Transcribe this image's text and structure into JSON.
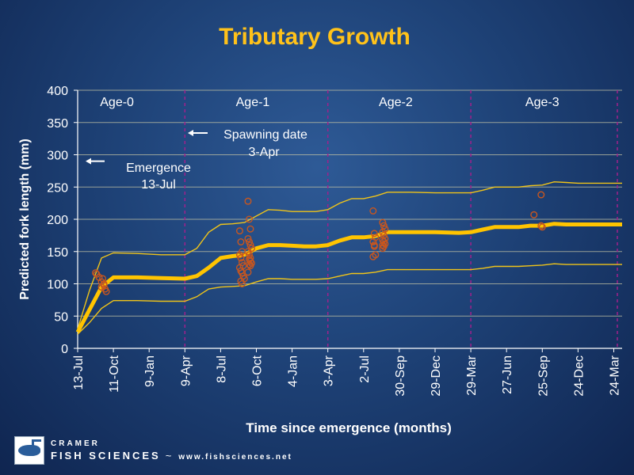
{
  "chart_data": {
    "type": "line",
    "title": "Tributary Growth",
    "xlabel": "Time since emergence (months)",
    "ylabel": "Predicted fork length (mm)",
    "ylim": [
      0,
      400
    ],
    "yticks": [
      0,
      50,
      100,
      150,
      200,
      250,
      300,
      350,
      400
    ],
    "xlim": [
      0,
      45.7
    ],
    "xticks": [
      {
        "label": "13-Jul",
        "month": 0
      },
      {
        "label": "11-Oct",
        "month": 3
      },
      {
        "label": "9-Jan",
        "month": 6
      },
      {
        "label": "9-Apr",
        "month": 9
      },
      {
        "label": "8-Jul",
        "month": 12
      },
      {
        "label": "6-Oct",
        "month": 15
      },
      {
        "label": "4-Jan",
        "month": 18
      },
      {
        "label": "3-Apr",
        "month": 21
      },
      {
        "label": "2-Jul",
        "month": 24
      },
      {
        "label": "30-Sep",
        "month": 27
      },
      {
        "label": "29-Dec",
        "month": 30
      },
      {
        "label": "29-Mar",
        "month": 33
      },
      {
        "label": "27-Jun",
        "month": 36
      },
      {
        "label": "25-Sep",
        "month": 39
      },
      {
        "label": "24-Dec",
        "month": 42
      },
      {
        "label": "24-Mar",
        "month": 45
      }
    ],
    "grid": true,
    "age_dividers": [
      9,
      21,
      33,
      45.3
    ],
    "age_labels": [
      {
        "label": "Age-0",
        "month": 3.3
      },
      {
        "label": "Age-1",
        "month": 14.7
      },
      {
        "label": "Age-2",
        "month": 26.7
      },
      {
        "label": "Age-3",
        "month": 39
      }
    ],
    "annotations": [
      {
        "line1": "Emergence",
        "line2": "13-Jul",
        "arrow_y": 290
      },
      {
        "line1": "Spawning date",
        "line2": "3-Apr",
        "arrow_y": 330
      }
    ],
    "series": [
      {
        "role": "mean",
        "x": [
          0,
          1,
          2,
          3,
          5,
          7,
          9,
          10,
          11,
          12,
          13,
          14,
          15,
          16,
          17,
          18,
          19,
          20,
          21,
          22,
          23,
          24,
          25,
          26,
          27,
          28,
          30,
          32,
          33,
          34,
          35,
          36,
          37,
          38,
          39,
          40,
          41,
          42,
          43,
          44,
          45,
          45.7
        ],
        "y": [
          25,
          60,
          95,
          110,
          110,
          109,
          108,
          112,
          125,
          140,
          143,
          145,
          155,
          160,
          160,
          159,
          158,
          158,
          160,
          167,
          172,
          172,
          174,
          180,
          180,
          180,
          180,
          179,
          180,
          184,
          188,
          188,
          188,
          190,
          190,
          193,
          192,
          192,
          192,
          192,
          192,
          192
        ]
      },
      {
        "role": "upper",
        "x": [
          0,
          1,
          2,
          3,
          5,
          7,
          9,
          10,
          11,
          12,
          13,
          14,
          15,
          16,
          17,
          18,
          19,
          20,
          21,
          22,
          23,
          24,
          25,
          26,
          27,
          28,
          30,
          32,
          33,
          34,
          35,
          36,
          37,
          38,
          39,
          40,
          41,
          42,
          43,
          44,
          45,
          45.7
        ],
        "y": [
          30,
          90,
          140,
          148,
          147,
          145,
          145,
          155,
          180,
          192,
          193,
          195,
          205,
          215,
          214,
          212,
          212,
          212,
          215,
          225,
          232,
          232,
          236,
          242,
          242,
          242,
          241,
          241,
          241,
          245,
          250,
          250,
          250,
          252,
          253,
          258,
          257,
          256,
          256,
          256,
          256,
          256
        ]
      },
      {
        "role": "lower",
        "x": [
          0,
          1,
          2,
          3,
          5,
          7,
          9,
          10,
          11,
          12,
          13,
          14,
          15,
          16,
          17,
          18,
          19,
          20,
          21,
          22,
          23,
          24,
          25,
          26,
          27,
          28,
          30,
          32,
          33,
          34,
          35,
          36,
          37,
          38,
          39,
          40,
          41,
          42,
          43,
          44,
          45,
          45.7
        ],
        "y": [
          22,
          40,
          62,
          74,
          74,
          73,
          73,
          80,
          92,
          95,
          96,
          97,
          103,
          108,
          108,
          107,
          107,
          107,
          108,
          112,
          116,
          116,
          118,
          122,
          122,
          122,
          122,
          122,
          122,
          124,
          127,
          127,
          127,
          128,
          129,
          131,
          130,
          130,
          130,
          130,
          130,
          130
        ]
      },
      {
        "role": "observed",
        "x": [
          1.5,
          1.6,
          1.8,
          2.0,
          2.1,
          2.2,
          2.3,
          2.4,
          2.0,
          2.2,
          13.6,
          13.7,
          13.8,
          13.6,
          13.7,
          13.8,
          13.9,
          13.6,
          13.7,
          13.8,
          13.9,
          14.0,
          13.7,
          13.8,
          14.3,
          14.4,
          14.5,
          14.3,
          14.4,
          14.5,
          14.6,
          14.3,
          14.4,
          14.5,
          14.4,
          14.5,
          14.6,
          14.4,
          14.5,
          14.3,
          24.8,
          24.9,
          25.0,
          24.8,
          24.9,
          25.0,
          24.8,
          24.9,
          25.6,
          25.7,
          25.8,
          25.6,
          25.7,
          25.8,
          25.6,
          25.7,
          25.8,
          25.6,
          25.7,
          25.6,
          38.3,
          38.9,
          38.9,
          39.0
        ],
        "y": [
          117,
          115,
          110,
          103,
          108,
          98,
          92,
          88,
          95,
          100,
          182,
          165,
          150,
          145,
          140,
          133,
          128,
          125,
          120,
          117,
          112,
          108,
          104,
          100,
          228,
          200,
          185,
          170,
          165,
          160,
          155,
          150,
          145,
          140,
          138,
          135,
          132,
          130,
          128,
          118,
          213,
          178,
          172,
          165,
          160,
          145,
          142,
          158,
          195,
          190,
          185,
          180,
          175,
          170,
          168,
          165,
          162,
          160,
          158,
          155,
          207,
          238,
          190,
          188
        ]
      }
    ]
  },
  "footer": {
    "brand_top": "Cramer",
    "brand_name": "Fish Sciences",
    "separator": "~",
    "url": "www.fishsciences.net"
  }
}
